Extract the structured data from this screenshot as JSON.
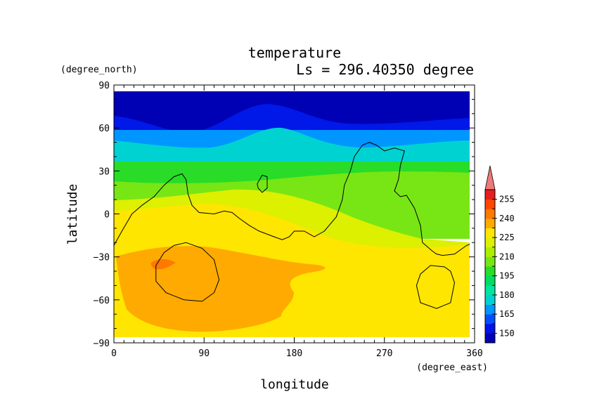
{
  "chart_data": {
    "type": "heatmap",
    "title": "temperature",
    "subtitle": "Ls = 296.40350 degree",
    "xlabel": "longitude",
    "ylabel": "latitude",
    "xunit": "(degree_east)",
    "yunit": "(degree_north)",
    "xlim": [
      0,
      360
    ],
    "ylim": [
      -90,
      90
    ],
    "xticks": [
      0,
      90,
      180,
      270,
      360
    ],
    "yticks": [
      90,
      60,
      30,
      0,
      -30,
      -60,
      -90
    ],
    "colorbar": {
      "levels": [
        150,
        165,
        180,
        195,
        210,
        225,
        240,
        255
      ],
      "colors": [
        "#0000b4",
        "#0012e6",
        "#0050ff",
        "#0096ff",
        "#00d2d2",
        "#00e6a0",
        "#00dc64",
        "#28dc28",
        "#78e614",
        "#aaf000",
        "#dcf000",
        "#ffe600",
        "#ffaa00",
        "#ff7800",
        "#ff4600",
        "#e61e1e",
        "#f07878"
      ]
    },
    "contours": [
      {
        "name": "c1",
        "points": [
          [
            0,
            -22
          ],
          [
            8,
            -12
          ],
          [
            18,
            0
          ],
          [
            28,
            6
          ],
          [
            40,
            12
          ],
          [
            50,
            20
          ],
          [
            60,
            26
          ],
          [
            68,
            28
          ],
          [
            72,
            24
          ],
          [
            74,
            14
          ],
          [
            78,
            6
          ],
          [
            85,
            1
          ],
          [
            100,
            0
          ],
          [
            110,
            2
          ],
          [
            118,
            1
          ],
          [
            125,
            -3
          ],
          [
            135,
            -8
          ],
          [
            145,
            -12
          ],
          [
            160,
            -16
          ],
          [
            168,
            -18
          ],
          [
            175,
            -16
          ],
          [
            180,
            -12
          ],
          [
            190,
            -12
          ],
          [
            200,
            -16
          ],
          [
            210,
            -12
          ],
          [
            222,
            -2
          ],
          [
            228,
            10
          ],
          [
            230,
            20
          ],
          [
            236,
            30
          ],
          [
            240,
            40
          ],
          [
            248,
            48
          ],
          [
            255,
            50
          ],
          [
            262,
            48
          ],
          [
            270,
            44
          ],
          [
            280,
            46
          ],
          [
            290,
            44
          ],
          [
            286,
            34
          ],
          [
            284,
            24
          ],
          [
            280,
            16
          ],
          [
            286,
            12
          ],
          [
            292,
            13
          ],
          [
            300,
            4
          ],
          [
            306,
            -8
          ],
          [
            308,
            -20
          ],
          [
            318,
            -26
          ],
          [
            322,
            -28
          ],
          [
            328,
            -29
          ],
          [
            340,
            -28
          ],
          [
            352,
            -22
          ],
          [
            360,
            -20
          ]
        ]
      },
      {
        "name": "c2",
        "points": [
          [
            72,
            -20
          ],
          [
            88,
            -24
          ],
          [
            100,
            -32
          ],
          [
            105,
            -46
          ],
          [
            100,
            -55
          ],
          [
            88,
            -61
          ],
          [
            70,
            -60
          ],
          [
            52,
            -55
          ],
          [
            42,
            -47
          ],
          [
            42,
            -36
          ],
          [
            50,
            -27
          ],
          [
            60,
            -22
          ],
          [
            72,
            -20
          ]
        ]
      },
      {
        "name": "c3",
        "points": [
          [
            143,
            21
          ],
          [
            148,
            27
          ],
          [
            153,
            26
          ],
          [
            153,
            18
          ],
          [
            148,
            15
          ],
          [
            144,
            18
          ],
          [
            143,
            21
          ]
        ]
      },
      {
        "name": "c4",
        "points": [
          [
            330,
            -37
          ],
          [
            336,
            -40
          ],
          [
            340,
            -48
          ],
          [
            336,
            -62
          ],
          [
            322,
            -66
          ],
          [
            306,
            -62
          ],
          [
            302,
            -50
          ],
          [
            306,
            -42
          ],
          [
            316,
            -36
          ],
          [
            330,
            -37
          ]
        ]
      }
    ]
  }
}
